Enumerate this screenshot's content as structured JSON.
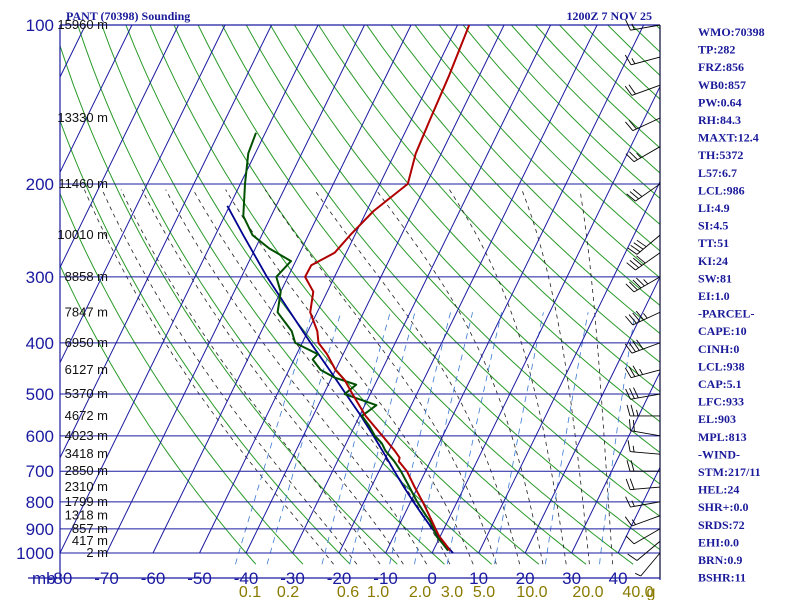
{
  "window": {
    "title": "PANT (70398) Sounding",
    "datetime": "1200Z  7 NOV 25"
  },
  "colors": {
    "frame": "#1a1aa0",
    "isotherm": "#1a1aa0",
    "dry_adiabat": "#2a9a2a",
    "moist_adiabat": "#222222",
    "mixing_ratio": "#3a7ad0",
    "temperature": "#b00000",
    "dewpoint": "#005000",
    "parcel": "#000090",
    "index_text": "#1a1a9a",
    "mixing_ratio_text": "#8a7a00"
  },
  "indices": [
    "WMO:70398",
    "TP:282",
    "FRZ:856",
    "WB0:857",
    "PW:0.64",
    "RH:84.3",
    "MAXT:12.4",
    "TH:5372",
    "L57:6.7",
    "LCL:986",
    "LI:4.9",
    "SI:4.5",
    "TT:51",
    "KI:24",
    "SW:81",
    "EI:1.0",
    "-PARCEL-",
    "CAPE:10",
    "CINH:0",
    "LCL:938",
    "CAP:5.1",
    "LFC:933",
    "EL:903",
    "MPL:813",
    "-WIND-",
    "STM:217/11",
    "HEL:24",
    "SHR+:0.0",
    "SRDS:72",
    "EHI:0.0",
    "BRN:0.9",
    "BSHR:11"
  ],
  "chart_data": {
    "type": "line",
    "chart_kind": "skew-T log-p sounding",
    "title": "PANT (70398) Sounding",
    "pressure_unit_label": "mb",
    "pressure_ticks": [
      100,
      200,
      300,
      400,
      500,
      600,
      700,
      800,
      900,
      1000
    ],
    "temperature_ticks": [
      -80,
      -70,
      -60,
      -50,
      -40,
      -30,
      -20,
      -10,
      0,
      10,
      20,
      30,
      40
    ],
    "ylim_mb": [
      1000,
      100
    ],
    "xlim_c_at_bottom": [
      -80,
      49
    ],
    "grid": true,
    "height_labels": [
      {
        "p": 1000,
        "label": "2 m"
      },
      {
        "p": 950,
        "label": "417 m"
      },
      {
        "p": 900,
        "label": "857 m"
      },
      {
        "p": 850,
        "label": "1318 m"
      },
      {
        "p": 800,
        "label": "1799 m"
      },
      {
        "p": 750,
        "label": "2310 m"
      },
      {
        "p": 700,
        "label": "2850 m"
      },
      {
        "p": 650,
        "label": "3418 m"
      },
      {
        "p": 600,
        "label": "4023 m"
      },
      {
        "p": 550,
        "label": "4672 m"
      },
      {
        "p": 500,
        "label": "5370 m"
      },
      {
        "p": 450,
        "label": "6127 m"
      },
      {
        "p": 400,
        "label": "6950 m"
      },
      {
        "p": 350,
        "label": "7847 m"
      },
      {
        "p": 300,
        "label": "8858 m"
      },
      {
        "p": 250,
        "label": "10010 m"
      },
      {
        "p": 200,
        "label": "11460 m"
      },
      {
        "p": 150,
        "label": "13330 m"
      },
      {
        "p": 100,
        "label": "15960 m"
      }
    ],
    "mixing_ratio_labels": [
      "0.1",
      "0.2",
      "0.6",
      "1.0",
      "2.0",
      "3.0",
      "5.0",
      "10.0",
      "20.0",
      "40.0",
      "g"
    ],
    "mixing_ratio_values": [
      0.1,
      0.2,
      0.6,
      1.0,
      2.0,
      3.0,
      5.0,
      10.0,
      20.0,
      40.0
    ],
    "series": [
      {
        "key": "temperature",
        "points": [
          [
            990,
            3.6
          ],
          [
            960,
            1.8
          ],
          [
            930,
            -0.2
          ],
          [
            900,
            -1.8
          ],
          [
            870,
            -3.4
          ],
          [
            850,
            -4.5
          ],
          [
            800,
            -7.4
          ],
          [
            750,
            -10.7
          ],
          [
            700,
            -14.0
          ],
          [
            670,
            -16.8
          ],
          [
            660,
            -17.0
          ],
          [
            640,
            -18.8
          ],
          [
            600,
            -23.0
          ],
          [
            550,
            -28.7
          ],
          [
            500,
            -33.8
          ],
          [
            470,
            -37.0
          ],
          [
            450,
            -40.0
          ],
          [
            420,
            -43.5
          ],
          [
            400,
            -46.5
          ],
          [
            380,
            -48.0
          ],
          [
            350,
            -51.5
          ],
          [
            320,
            -53.0
          ],
          [
            300,
            -56.3
          ],
          [
            285,
            -56.2
          ],
          [
            270,
            -52.5
          ],
          [
            250,
            -51.0
          ],
          [
            225,
            -48.5
          ],
          [
            200,
            -44.0
          ],
          [
            175,
            -45.5
          ],
          [
            150,
            -46.0
          ],
          [
            125,
            -46.5
          ],
          [
            100,
            -47.5
          ]
        ]
      },
      {
        "key": "dewpoint",
        "points": [
          [
            990,
            3.2
          ],
          [
            960,
            1.3
          ],
          [
            930,
            -0.8
          ],
          [
            900,
            -2.2
          ],
          [
            870,
            -3.8
          ],
          [
            850,
            -5.2
          ],
          [
            800,
            -8.6
          ],
          [
            750,
            -11.8
          ],
          [
            700,
            -15.3
          ],
          [
            670,
            -17.8
          ],
          [
            640,
            -20.8
          ],
          [
            620,
            -22.3
          ],
          [
            600,
            -24.6
          ],
          [
            575,
            -26.8
          ],
          [
            550,
            -29.5
          ],
          [
            525,
            -27.5
          ],
          [
            500,
            -35.5
          ],
          [
            480,
            -34.0
          ],
          [
            465,
            -39.5
          ],
          [
            450,
            -43.2
          ],
          [
            430,
            -46.0
          ],
          [
            420,
            -45.5
          ],
          [
            400,
            -51.5
          ],
          [
            380,
            -53.5
          ],
          [
            350,
            -58.5
          ],
          [
            320,
            -60.0
          ],
          [
            300,
            -62.5
          ],
          [
            280,
            -61.0
          ],
          [
            265,
            -67.0
          ],
          [
            250,
            -72.0
          ],
          [
            230,
            -76.0
          ],
          [
            200,
            -79.0
          ],
          [
            175,
            -81.5
          ],
          [
            160,
            -82.0
          ]
        ]
      },
      {
        "key": "parcel",
        "points": [
          [
            1000,
            4.5
          ],
          [
            950,
            1.0
          ],
          [
            900,
            -2.5
          ],
          [
            850,
            -5.9
          ],
          [
            800,
            -9.4
          ],
          [
            750,
            -13.0
          ],
          [
            700,
            -16.7
          ],
          [
            650,
            -20.6
          ],
          [
            600,
            -24.9
          ],
          [
            550,
            -29.7
          ],
          [
            500,
            -35.2
          ],
          [
            450,
            -41.3
          ],
          [
            400,
            -48.2
          ],
          [
            350,
            -55.8
          ],
          [
            300,
            -64.5
          ],
          [
            250,
            -74.0
          ],
          [
            220,
            -80.5
          ]
        ]
      }
    ],
    "wind_barbs": [
      {
        "p": 1000,
        "dir": 220,
        "spd": 5
      },
      {
        "p": 950,
        "dir": 230,
        "spd": 10
      },
      {
        "p": 900,
        "dir": 240,
        "spd": 10
      },
      {
        "p": 850,
        "dir": 250,
        "spd": 15
      },
      {
        "p": 800,
        "dir": 260,
        "spd": 15
      },
      {
        "p": 750,
        "dir": 265,
        "spd": 20
      },
      {
        "p": 700,
        "dir": 270,
        "spd": 20
      },
      {
        "p": 650,
        "dir": 275,
        "spd": 15
      },
      {
        "p": 600,
        "dir": 280,
        "spd": 20
      },
      {
        "p": 550,
        "dir": 270,
        "spd": 25
      },
      {
        "p": 500,
        "dir": 260,
        "spd": 30
      },
      {
        "p": 450,
        "dir": 255,
        "spd": 35
      },
      {
        "p": 400,
        "dir": 250,
        "spd": 40
      },
      {
        "p": 350,
        "dir": 245,
        "spd": 45
      },
      {
        "p": 300,
        "dir": 240,
        "spd": 45
      },
      {
        "p": 270,
        "dir": 235,
        "spd": 40
      },
      {
        "p": 250,
        "dir": 230,
        "spd": 40
      },
      {
        "p": 200,
        "dir": 235,
        "spd": 30
      },
      {
        "p": 170,
        "dir": 240,
        "spd": 25
      },
      {
        "p": 150,
        "dir": 245,
        "spd": 20
      },
      {
        "p": 130,
        "dir": 250,
        "spd": 20
      },
      {
        "p": 115,
        "dir": 255,
        "spd": 15
      },
      {
        "p": 100,
        "dir": 260,
        "spd": 15
      }
    ]
  }
}
